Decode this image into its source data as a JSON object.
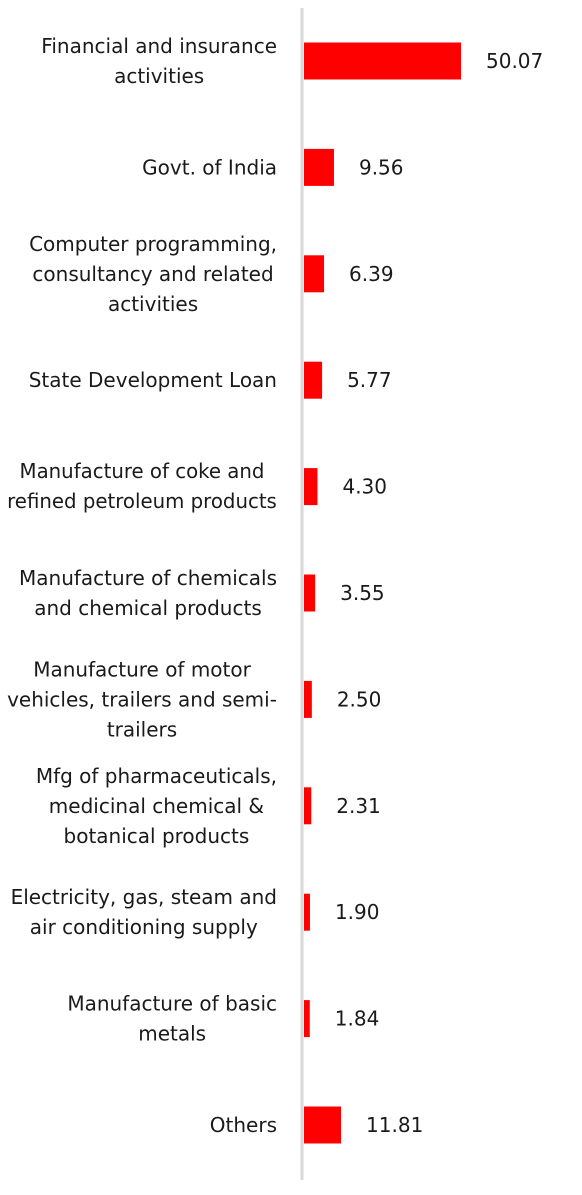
{
  "chart_data": {
    "type": "bar",
    "orientation": "horizontal",
    "title": "",
    "xlabel": "",
    "ylabel": "",
    "bar_color": "#ff0000",
    "axis_color": "#d9d9d9",
    "grid": false,
    "legend": "none",
    "categories": [
      [
        "Financial and insurance",
        "activities"
      ],
      [
        "Govt. of India"
      ],
      [
        "Computer programming,",
        "consultancy and related",
        "activities"
      ],
      [
        "State Development Loan"
      ],
      [
        "Manufacture of coke and",
        "refined petroleum products"
      ],
      [
        "Manufacture of chemicals",
        "and chemical products"
      ],
      [
        "Manufacture of motor",
        "vehicles, trailers and semi-",
        "trailers"
      ],
      [
        "Mfg of pharmaceuticals,",
        "medicinal chemical &",
        "botanical products"
      ],
      [
        "Electricity, gas, steam and",
        "air conditioning supply"
      ],
      [
        "Manufacture of basic",
        "metals"
      ],
      [
        "Others"
      ]
    ],
    "values": [
      50.07,
      9.56,
      6.39,
      5.77,
      4.3,
      3.55,
      2.5,
      2.31,
      1.9,
      1.84,
      11.81
    ],
    "value_labels": [
      "50.07",
      "9.56",
      "6.39",
      "5.77",
      "4.30",
      "3.55",
      "2.50",
      "2.31",
      "1.90",
      "1.84",
      "11.81"
    ]
  }
}
